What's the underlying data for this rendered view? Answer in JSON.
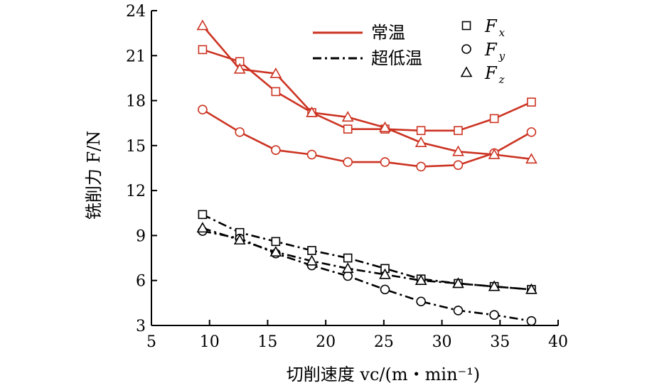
{
  "chart_data": {
    "type": "line",
    "xlabel": "切削速度 vc/(m・min⁻¹)",
    "ylabel": "铣削力 F/N",
    "xlim": [
      5,
      40
    ],
    "ylim": [
      3,
      24
    ],
    "xticks": [
      5,
      10,
      15,
      20,
      25,
      30,
      35,
      40
    ],
    "yticks": [
      3,
      6,
      9,
      12,
      15,
      18,
      21,
      24
    ],
    "grid": false,
    "x": [
      9.4,
      12.6,
      15.7,
      18.8,
      21.9,
      25.1,
      28.2,
      31.4,
      34.5,
      37.7
    ],
    "line_legend": [
      {
        "label": "常温",
        "style": "solid",
        "color": "#cc3322"
      },
      {
        "label": "超低温",
        "style": "dashdot",
        "color": "#000000"
      }
    ],
    "marker_legend": [
      {
        "label": "F",
        "sub": "x",
        "marker": "square"
      },
      {
        "label": "F",
        "sub": "y",
        "marker": "circle"
      },
      {
        "label": "F",
        "sub": "z",
        "marker": "triangle"
      }
    ],
    "series": [
      {
        "condition": "常温",
        "component": "Fx",
        "marker": "square",
        "style": "solid",
        "color": "#cc3322",
        "values": [
          21.4,
          20.6,
          18.6,
          17.2,
          16.1,
          16.1,
          16.0,
          16.0,
          16.8,
          17.9
        ]
      },
      {
        "condition": "常温",
        "component": "Fy",
        "marker": "circle",
        "style": "solid",
        "color": "#cc3322",
        "values": [
          17.4,
          15.9,
          14.7,
          14.4,
          13.9,
          13.9,
          13.6,
          13.7,
          14.5,
          15.9
        ]
      },
      {
        "condition": "常温",
        "component": "Fz",
        "marker": "triangle",
        "style": "solid",
        "color": "#cc3322",
        "values": [
          23.0,
          20.1,
          19.8,
          17.2,
          16.9,
          16.2,
          15.2,
          14.6,
          14.4,
          14.1
        ]
      },
      {
        "condition": "超低温",
        "component": "Fx",
        "marker": "square",
        "style": "dashdot",
        "color": "#000000",
        "values": [
          10.4,
          9.2,
          8.6,
          8.0,
          7.5,
          6.8,
          6.1,
          5.8,
          5.6,
          5.4
        ]
      },
      {
        "condition": "超低温",
        "component": "Fy",
        "marker": "circle",
        "style": "dashdot",
        "color": "#000000",
        "values": [
          9.3,
          8.8,
          7.8,
          7.0,
          6.3,
          5.4,
          4.6,
          4.0,
          3.7,
          3.3
        ]
      },
      {
        "condition": "超低温",
        "component": "Fz",
        "marker": "triangle",
        "style": "dashdot",
        "color": "#000000",
        "values": [
          9.5,
          8.7,
          7.9,
          7.3,
          6.8,
          6.4,
          6.0,
          5.8,
          5.6,
          5.4
        ]
      }
    ]
  }
}
